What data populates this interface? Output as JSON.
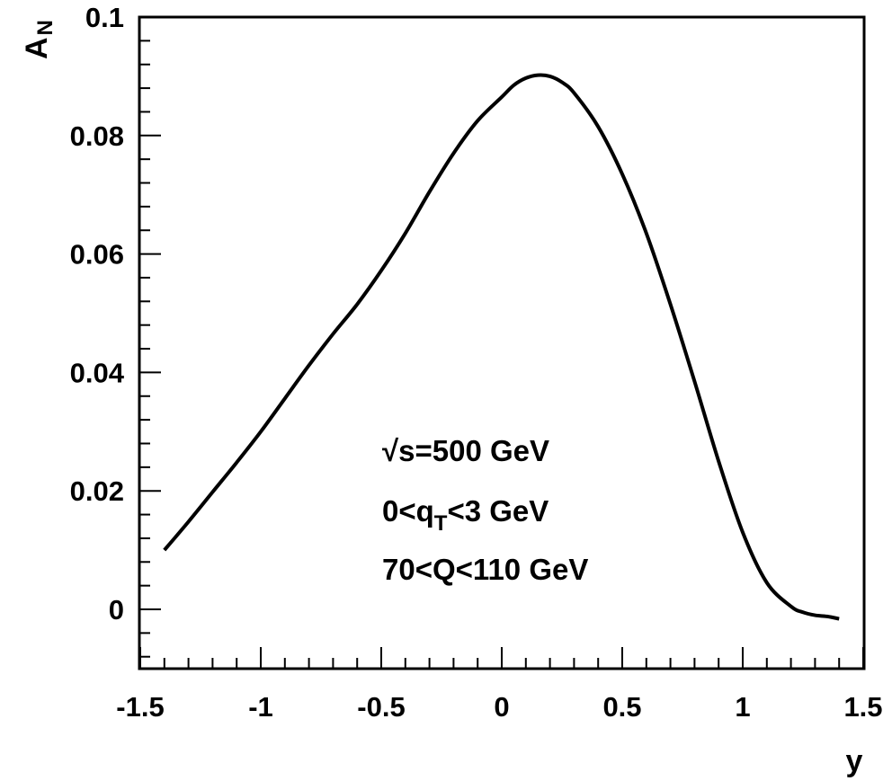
{
  "chart_data": {
    "type": "line",
    "xlabel": "y",
    "ylabel": "A",
    "ylabel_sub": "N",
    "xlim": [
      -1.5,
      1.5
    ],
    "ylim": [
      -0.01,
      0.1
    ],
    "x_ticks": [
      -1.5,
      -1,
      -0.5,
      0,
      0.5,
      1,
      1.5
    ],
    "x_tick_labels": [
      "-1.5",
      "-1",
      "-0.5",
      "0",
      "0.5",
      "1",
      "1.5"
    ],
    "y_ticks": [
      0,
      0.02,
      0.04,
      0.06,
      0.08,
      0.1
    ],
    "y_tick_labels": [
      "0",
      "0.02",
      "0.04",
      "0.06",
      "0.08",
      "0.1"
    ],
    "grid": false,
    "annotations": [
      {
        "main": "√s=500 GeV"
      },
      {
        "main": "0<q",
        "sub": "T",
        "tail": "<3 GeV"
      },
      {
        "main": "70<Q<110 GeV"
      }
    ],
    "series": [
      {
        "x": [
          -1.4,
          -1.3,
          -1.2,
          -1.1,
          -1.0,
          -0.9,
          -0.8,
          -0.7,
          -0.6,
          -0.5,
          -0.4,
          -0.3,
          -0.2,
          -0.1,
          0.0,
          0.05,
          0.1,
          0.15,
          0.2,
          0.25,
          0.3,
          0.4,
          0.5,
          0.6,
          0.7,
          0.8,
          0.9,
          1.0,
          1.1,
          1.2,
          1.25,
          1.3,
          1.35,
          1.4
        ],
        "y": [
          0.01,
          0.0148,
          0.0198,
          0.0248,
          0.03,
          0.0356,
          0.0412,
          0.0465,
          0.0515,
          0.0572,
          0.0635,
          0.0705,
          0.077,
          0.0825,
          0.0865,
          0.0885,
          0.0897,
          0.0902,
          0.09,
          0.089,
          0.0872,
          0.0815,
          0.0735,
          0.0635,
          0.0515,
          0.0385,
          0.025,
          0.013,
          0.0045,
          0.0005,
          -0.0005,
          -0.001,
          -0.0012,
          -0.0016
        ]
      }
    ]
  }
}
